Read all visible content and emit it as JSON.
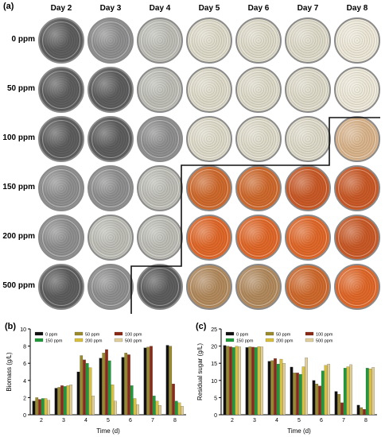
{
  "panel_a": {
    "label": "(a)",
    "days": [
      "Day 2",
      "Day 3",
      "Day 4",
      "Day 5",
      "Day 6",
      "Day 7",
      "Day 8"
    ],
    "rows": [
      "0 ppm",
      "50 ppm",
      "100 ppm",
      "150 ppm",
      "200 ppm",
      "500 ppm"
    ],
    "colors": {
      "grey_dark": "#5e5e5e",
      "grey_mid": "#8f8f8f",
      "grey_light": "#bdbdb6",
      "cream": "#ddd9c8",
      "cream_light": "#ebe6d6",
      "tan": "#d9b48c",
      "orange": "#cf6a2e",
      "orange_bright": "#e0682a",
      "orange_deep": "#c95a28",
      "brownish": "#b28a5e"
    },
    "dish_fill": [
      [
        "grey_dark",
        "grey_mid",
        "grey_light",
        "cream",
        "cream",
        "cream",
        "cream_light"
      ],
      [
        "grey_dark",
        "grey_dark",
        "grey_light",
        "cream",
        "cream",
        "cream",
        "cream_light"
      ],
      [
        "grey_dark",
        "grey_dark",
        "grey_mid",
        "cream",
        "cream",
        "cream",
        "tan"
      ],
      [
        "grey_mid",
        "grey_mid",
        "grey_light",
        "orange",
        "orange",
        "orange_deep",
        "orange_deep"
      ],
      [
        "grey_mid",
        "grey_light",
        "grey_light",
        "orange_bright",
        "orange_bright",
        "orange_bright",
        "orange_deep"
      ],
      [
        "grey_dark",
        "grey_mid",
        "grey_dark",
        "brownish",
        "brownish",
        "orange",
        "orange_bright"
      ]
    ]
  },
  "chart_data": [
    {
      "panel": "(b)",
      "type": "bar",
      "title": "",
      "xlabel": "Time (d)",
      "ylabel": "Biomass (g/L)",
      "categories": [
        "2",
        "3",
        "4",
        "5",
        "6",
        "7",
        "8"
      ],
      "ylim": [
        0,
        10
      ],
      "yticks": [
        0,
        2,
        4,
        6,
        8,
        10
      ],
      "series": [
        {
          "name": "0 ppm",
          "color": "#111111",
          "values": [
            1.6,
            3.1,
            5.0,
            6.6,
            6.7,
            7.8,
            8.1
          ]
        },
        {
          "name": "50 ppm",
          "color": "#9a8a2a",
          "values": [
            2.0,
            3.2,
            6.9,
            7.2,
            7.2,
            7.9,
            8.0
          ]
        },
        {
          "name": "100 ppm",
          "color": "#8b2a14",
          "values": [
            1.8,
            3.4,
            6.4,
            7.6,
            7.0,
            8.0,
            3.6
          ]
        },
        {
          "name": "150 ppm",
          "color": "#1f9a3a",
          "values": [
            1.9,
            3.3,
            6.0,
            6.3,
            3.4,
            2.2,
            1.6
          ]
        },
        {
          "name": "200 ppm",
          "color": "#d9c03a",
          "values": [
            1.9,
            3.4,
            5.5,
            3.5,
            1.9,
            1.6,
            1.4
          ]
        },
        {
          "name": "500 ppm",
          "color": "#e0cf9a",
          "values": [
            1.7,
            3.5,
            2.2,
            1.6,
            1.2,
            1.1,
            1.0
          ]
        }
      ],
      "legend": "top"
    },
    {
      "panel": "(c)",
      "type": "bar",
      "title": "",
      "xlabel": "Time (d)",
      "ylabel": "Residual sugar (g/L)",
      "categories": [
        "2",
        "3",
        "4",
        "5",
        "6",
        "7",
        "8"
      ],
      "ylim": [
        0,
        25
      ],
      "yticks": [
        0,
        5,
        10,
        15,
        20,
        25
      ],
      "series": [
        {
          "name": "0 ppm",
          "color": "#111111",
          "values": [
            20.2,
            19.6,
            15.6,
            13.9,
            10.0,
            6.8,
            2.8
          ]
        },
        {
          "name": "50 ppm",
          "color": "#9a8a2a",
          "values": [
            20.0,
            19.8,
            15.8,
            12.2,
            9.0,
            6.0,
            2.1
          ]
        },
        {
          "name": "100 ppm",
          "color": "#8b2a14",
          "values": [
            19.8,
            19.7,
            16.4,
            12.2,
            8.4,
            3.5,
            1.6
          ]
        },
        {
          "name": "150 ppm",
          "color": "#1f9a3a",
          "values": [
            19.6,
            19.6,
            14.8,
            11.8,
            12.8,
            13.6,
            13.6
          ]
        },
        {
          "name": "200 ppm",
          "color": "#d9c03a",
          "values": [
            20.0,
            19.9,
            16.2,
            14.0,
            14.4,
            14.0,
            13.4
          ]
        },
        {
          "name": "500 ppm",
          "color": "#e0cf9a",
          "values": [
            19.8,
            19.8,
            15.0,
            16.6,
            14.8,
            14.6,
            13.8
          ]
        }
      ],
      "legend": "top"
    }
  ]
}
